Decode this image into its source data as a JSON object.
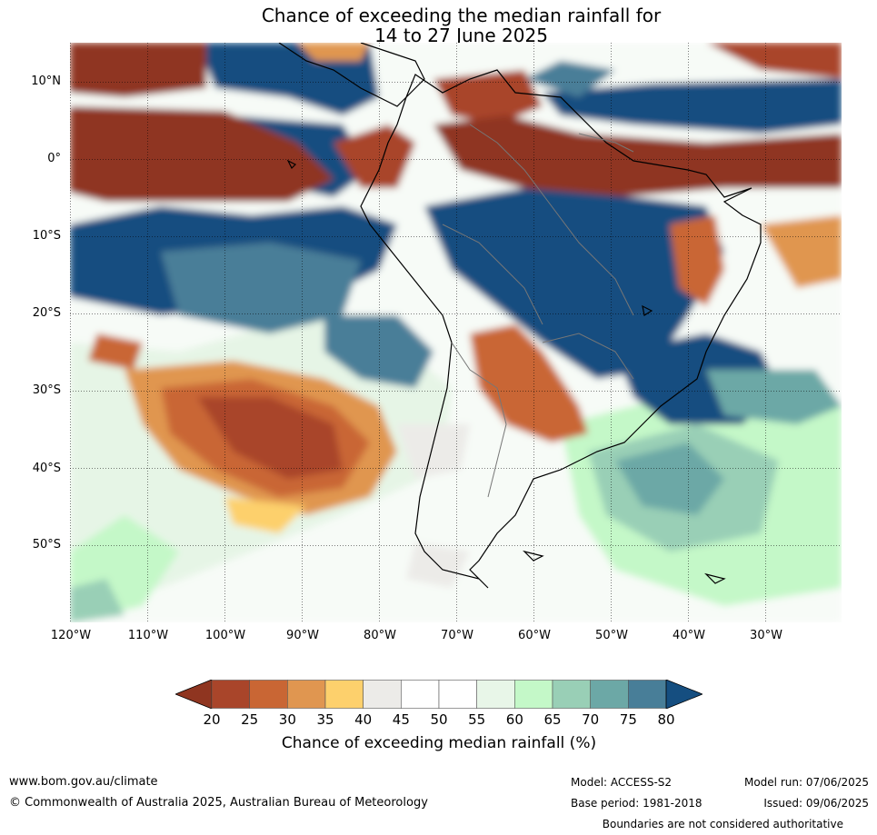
{
  "title": {
    "line1": "Chance of exceeding the median rainfall for",
    "line2": "14 to 27 June 2025"
  },
  "map": {
    "region": "South America and surrounding oceans",
    "lat_labels": [
      "10°N",
      "0°",
      "10°S",
      "20°S",
      "30°S",
      "40°S",
      "50°S"
    ],
    "lon_labels": [
      "120°W",
      "110°W",
      "100°W",
      "90°W",
      "80°W",
      "70°W",
      "60°W",
      "50°W",
      "40°W",
      "30°W"
    ],
    "gridlines": true
  },
  "colorbar": {
    "title": "Chance of exceeding median rainfall (%)",
    "ticks": [
      "20",
      "25",
      "30",
      "35",
      "40",
      "45",
      "50",
      "55",
      "60",
      "65",
      "70",
      "75",
      "80"
    ],
    "colors": [
      "#8f3520",
      "#a9452a",
      "#c96634",
      "#e09650",
      "#fdd06c",
      "#ecebe8",
      "#ffffff",
      "#ffffff",
      "#e8f6e8",
      "#c4f8c8",
      "#99cfb6",
      "#6ca8a6",
      "#487e98",
      "#154e80"
    ]
  },
  "footer": {
    "website": "www.bom.gov.au/climate",
    "copyright": "© Commonwealth of Australia 2025, Australian Bureau of Meteorology",
    "model": "Model: ACCESS-S2",
    "base_period": "Base period: 1981-2018",
    "model_run": "Model run: 07/06/2025",
    "issued": "Issued: 09/06/2025",
    "disclaimer": "Boundaries are not considered authoritative"
  }
}
